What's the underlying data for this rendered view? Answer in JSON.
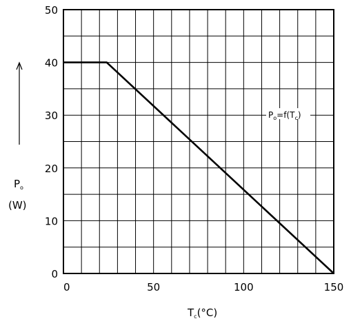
{
  "chart_data": {
    "type": "line",
    "x": [
      0,
      24,
      150
    ],
    "y": [
      40,
      40,
      0
    ],
    "xlim": [
      0,
      150
    ],
    "ylim": [
      0,
      50
    ],
    "x_major_ticks": [
      0,
      50,
      100,
      150
    ],
    "y_major_ticks": [
      0,
      10,
      20,
      30,
      40,
      50
    ],
    "x_tick_labels": [
      "0",
      "50",
      "100",
      "150"
    ],
    "y_tick_labels": [
      "0",
      "10",
      "20",
      "30",
      "40",
      "50"
    ],
    "grid": "on (x every 10, y every 5)",
    "xlabel": {
      "main": "T",
      "sub": "c",
      "unit": "(°C)"
    },
    "ylabel": {
      "main": "P",
      "sub": "o",
      "unit": "(W)"
    },
    "curve_label": {
      "pre": "P",
      "sub1": "o",
      "mid": "=f(T",
      "sub2": "c",
      "post": ")"
    },
    "colors": {
      "line": "#000000",
      "grid": "#000000",
      "background": "#ffffff"
    }
  }
}
